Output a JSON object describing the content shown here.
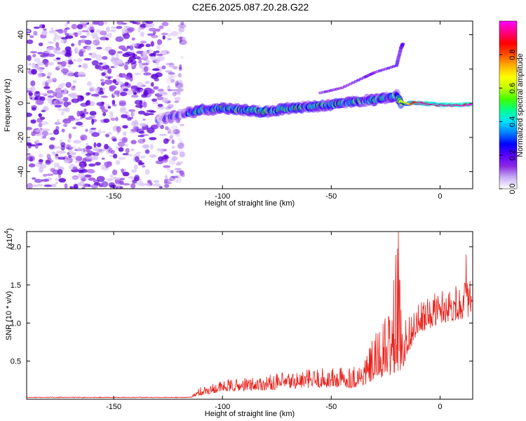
{
  "title": "C2E6.2025.087.20.28.G22",
  "chart_data": [
    {
      "type": "heatmap",
      "xlabel": "Height of straight line (km)",
      "ylabel": "Frequency (Hz)",
      "xlim": [
        -190,
        15
      ],
      "ylim": [
        -50,
        48
      ],
      "xticks": [
        -150,
        -100,
        -50,
        0
      ],
      "yticks": [
        -40,
        -20,
        0,
        20,
        40
      ],
      "colorbar": {
        "label": "Normalized spectral amplitude",
        "range": [
          0,
          1
        ],
        "ticks": [
          "0.0",
          "0.2",
          "0.4",
          "0.6",
          "0.8"
        ],
        "colors": [
          "#ffffff",
          "#c9b0f5",
          "#8a2be2",
          "#5a00ff",
          "#0000ff",
          "#0080ff",
          "#00e0ff",
          "#00ff90",
          "#40ff00",
          "#c0ff00",
          "#ffff00",
          "#ffb000",
          "#ff5000",
          "#ff0000",
          "#ff0080",
          "#ff00ff"
        ]
      },
      "noise_region": {
        "x": [
          -190,
          -118
        ],
        "y": [
          -50,
          48
        ],
        "amplitude": 0.12
      },
      "ridge": [
        {
          "x": -130,
          "y": -10,
          "amp": 0.12
        },
        {
          "x": -120,
          "y": -7,
          "amp": 0.2
        },
        {
          "x": -110,
          "y": -4,
          "amp": 0.35
        },
        {
          "x": -100,
          "y": -3,
          "amp": 0.38
        },
        {
          "x": -90,
          "y": -4,
          "amp": 0.4
        },
        {
          "x": -80,
          "y": -5,
          "amp": 0.37
        },
        {
          "x": -70,
          "y": -3,
          "amp": 0.4
        },
        {
          "x": -60,
          "y": -2,
          "amp": 0.38
        },
        {
          "x": -50,
          "y": -1,
          "amp": 0.36
        },
        {
          "x": -40,
          "y": 1,
          "amp": 0.38
        },
        {
          "x": -30,
          "y": 2,
          "amp": 0.36
        },
        {
          "x": -25,
          "y": 3,
          "amp": 0.4
        },
        {
          "x": -20,
          "y": 5,
          "amp": 0.3
        },
        {
          "x": -18,
          "y": 0,
          "amp": 0.5
        },
        {
          "x": -10,
          "y": 0,
          "amp": 0.95
        },
        {
          "x": 0,
          "y": -1,
          "amp": 0.95
        },
        {
          "x": 14,
          "y": -1,
          "amp": 0.95
        }
      ],
      "secondary_ridge": [
        {
          "x": -55,
          "y": 6
        },
        {
          "x": -45,
          "y": 9
        },
        {
          "x": -35,
          "y": 15
        },
        {
          "x": -30,
          "y": 18
        },
        {
          "x": -20,
          "y": 22
        },
        {
          "x": -18,
          "y": 32
        },
        {
          "x": -17,
          "y": 35
        }
      ]
    },
    {
      "type": "line",
      "xlabel": "Height of straight line (km)",
      "ylabel": "SNR (10 * v/v)",
      "y_multiplier": "(x10",
      "y_multiplier_exp": "4",
      "y_multiplier_close": ")",
      "xlim": [
        -190,
        15
      ],
      "ylim": [
        0,
        2.2
      ],
      "xticks": [
        -150,
        -100,
        -50,
        0
      ],
      "yticks": [
        "0.5",
        "1.0",
        "1.5",
        "2.0"
      ],
      "color": "#e8201a",
      "envelope": [
        {
          "x": -190,
          "base": 0.02,
          "amp": 0.01
        },
        {
          "x": -115,
          "base": 0.02,
          "amp": 0.01
        },
        {
          "x": -110,
          "base": 0.05,
          "amp": 0.12
        },
        {
          "x": -100,
          "base": 0.1,
          "amp": 0.15
        },
        {
          "x": -80,
          "base": 0.12,
          "amp": 0.2
        },
        {
          "x": -60,
          "base": 0.15,
          "amp": 0.25
        },
        {
          "x": -40,
          "base": 0.15,
          "amp": 0.3
        },
        {
          "x": -35,
          "base": 0.18,
          "amp": 0.35
        },
        {
          "x": -30,
          "base": 0.25,
          "amp": 0.6
        },
        {
          "x": -25,
          "base": 0.3,
          "amp": 0.8
        },
        {
          "x": -22,
          "base": 0.3,
          "amp": 1.1
        },
        {
          "x": -20,
          "base": 0.35,
          "amp": 1.8
        },
        {
          "x": -17,
          "base": 0.4,
          "amp": 0.7
        },
        {
          "x": -15,
          "base": 0.6,
          "amp": 0.5
        },
        {
          "x": -10,
          "base": 0.85,
          "amp": 0.4
        },
        {
          "x": 0,
          "base": 1.0,
          "amp": 0.45
        },
        {
          "x": 10,
          "base": 1.05,
          "amp": 0.5
        },
        {
          "x": 15,
          "base": 1.1,
          "amp": 0.5
        }
      ],
      "peaks": [
        {
          "x": -19.2,
          "y": 2.2
        },
        {
          "x": 12,
          "y": 1.9
        },
        {
          "x": 15,
          "y": 1.65
        }
      ]
    }
  ]
}
